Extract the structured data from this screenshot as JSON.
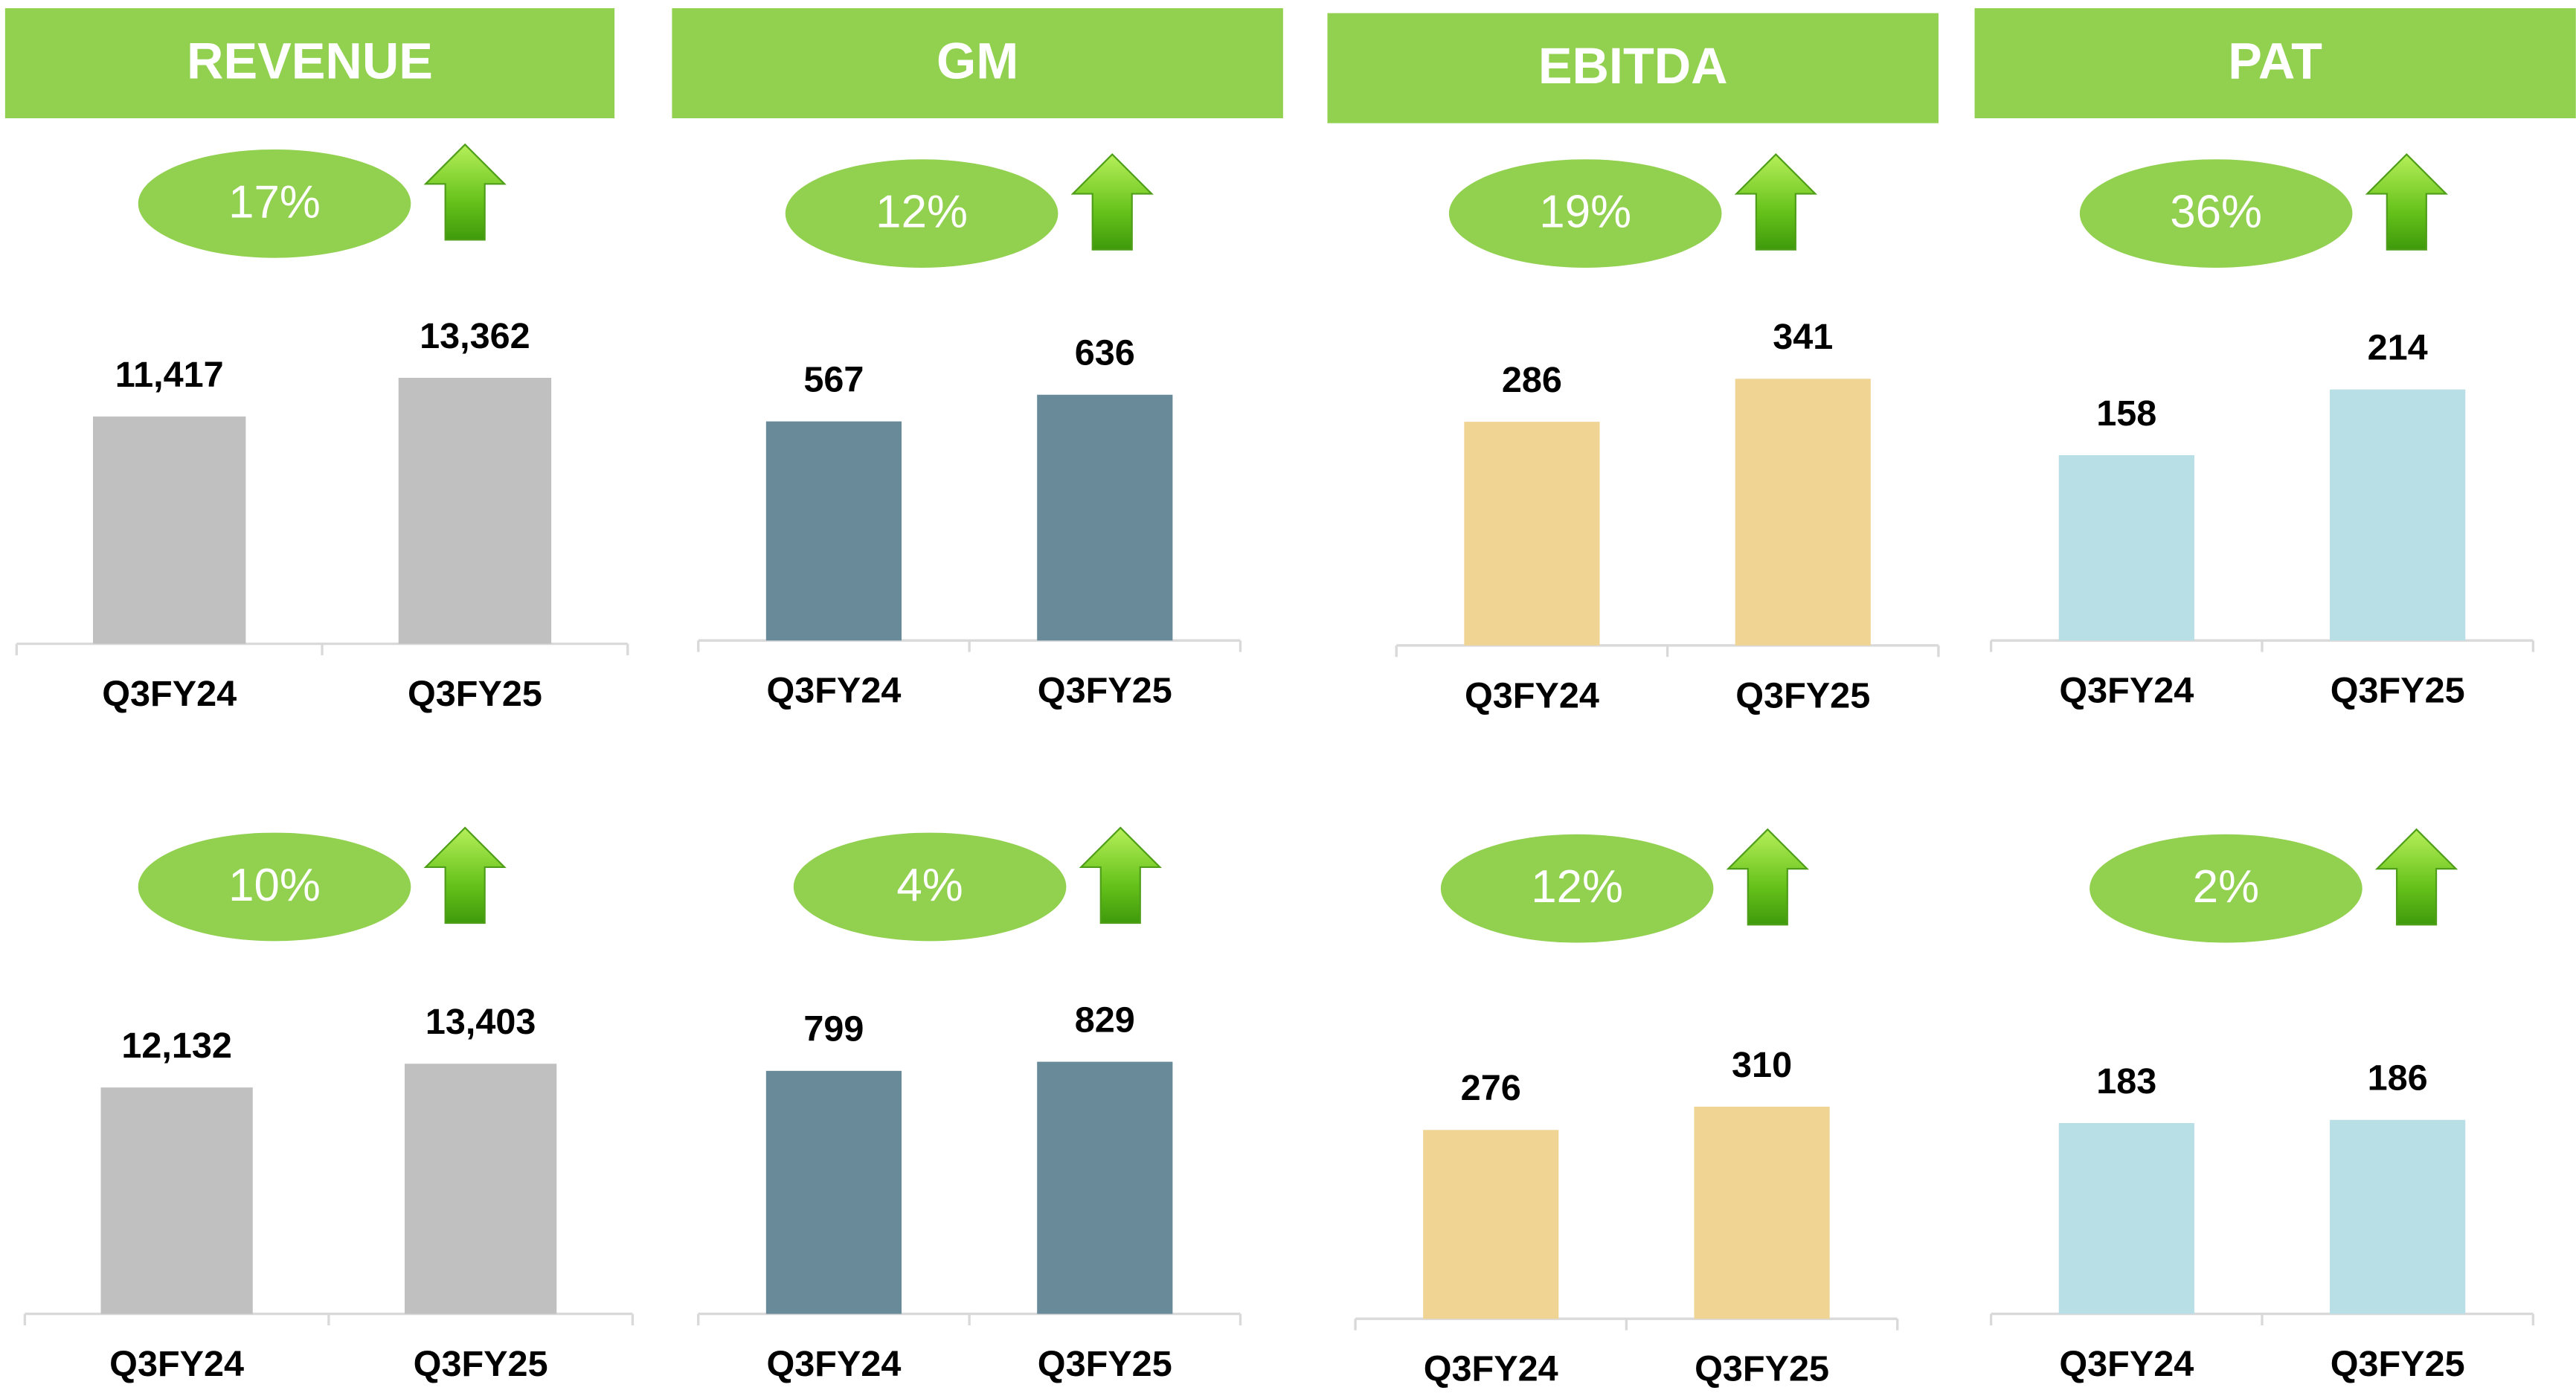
{
  "headers": [
    "REVENUE",
    "GM",
    "EBITDA",
    "PAT"
  ],
  "chart_data": [
    {
      "type": "bar",
      "categories": [
        "Q3FY24",
        "Q3FY25"
      ],
      "values": [
        11417,
        13362
      ],
      "value_labels": [
        "11,417",
        "13,362"
      ],
      "annotation": "17%",
      "color": "#c0c0c0",
      "ylim": [
        0,
        16500
      ]
    },
    {
      "type": "bar",
      "categories": [
        "Q3FY24",
        "Q3FY25"
      ],
      "values": [
        567,
        636
      ],
      "annotation": "12%",
      "color": "#688a99",
      "ylim": [
        0,
        850
      ]
    },
    {
      "type": "bar",
      "categories": [
        "Q3FY24",
        "Q3FY25"
      ],
      "values": [
        286,
        341
      ],
      "annotation": "19%",
      "color": "#f0d494",
      "ylim": [
        0,
        420
      ]
    },
    {
      "type": "bar",
      "categories": [
        "Q3FY24",
        "Q3FY25"
      ],
      "values": [
        158,
        214
      ],
      "annotation": "36%",
      "color": "#b8dee6",
      "ylim": [
        0,
        280
      ]
    },
    {
      "type": "bar",
      "categories": [
        "Q3FY24",
        "Q3FY25"
      ],
      "values": [
        12132,
        13403
      ],
      "value_labels": [
        "12,132",
        "13,403"
      ],
      "annotation": "10%",
      "color": "#c0c0c0",
      "ylim": [
        0,
        17600
      ]
    },
    {
      "type": "bar",
      "categories": [
        "Q3FY24",
        "Q3FY25"
      ],
      "values": [
        799,
        829
      ],
      "annotation": "4%",
      "color": "#688a99",
      "ylim": [
        0,
        1080
      ]
    },
    {
      "type": "bar",
      "categories": [
        "Q3FY24",
        "Q3FY25"
      ],
      "values": [
        276,
        310
      ],
      "annotation": "12%",
      "color": "#f0d494",
      "ylim": [
        0,
        480
      ]
    },
    {
      "type": "bar",
      "categories": [
        "Q3FY24",
        "Q3FY25"
      ],
      "values": [
        183,
        186
      ],
      "annotation": "2%",
      "color": "#b8dee6",
      "ylim": [
        0,
        315
      ]
    }
  ]
}
